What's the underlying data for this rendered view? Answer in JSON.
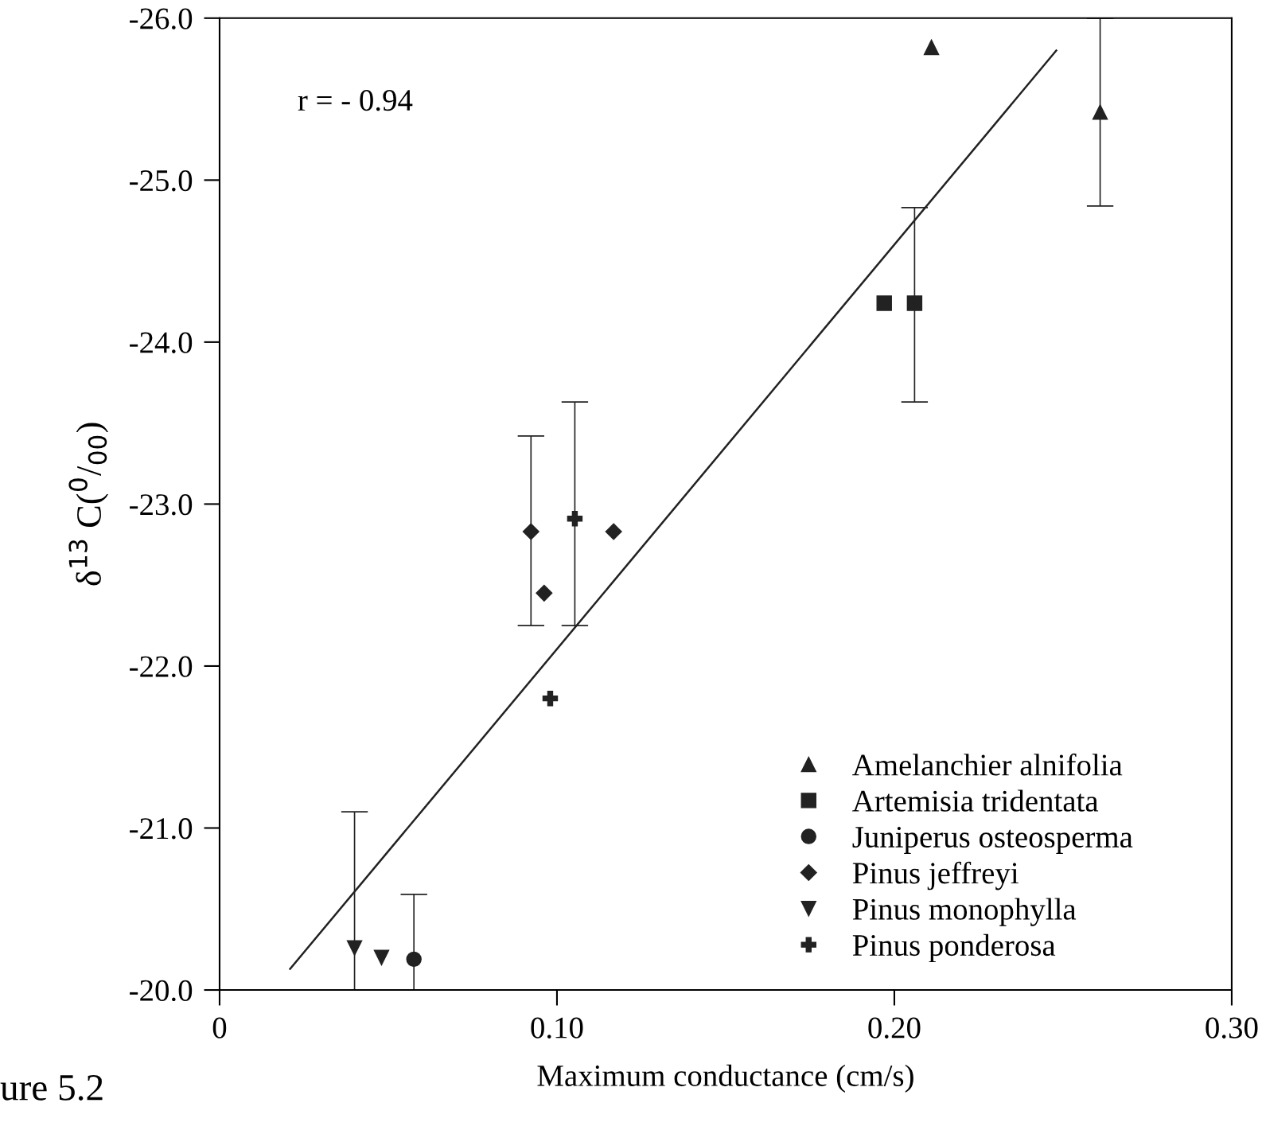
{
  "chart_data": {
    "type": "scatter",
    "xlabel": "Maximum conductance (cm/s)",
    "ylabel": "δ$^{13}$ C($^{0}$/$_{00}$)",
    "annotations": [
      "r = - 0.94",
      "ure 5.2"
    ],
    "xlim": [
      0,
      0.3
    ],
    "xticks": [
      0,
      {
        "value": 0.1,
        "label": "0.10"
      },
      {
        "value": 0.2,
        "label": "0.20"
      },
      {
        "value": 0.3,
        "label": "0.30"
      }
    ],
    "ylim": [
      -20,
      -26
    ],
    "yticks": [
      {
        "value": -20,
        "label": "-20.0"
      },
      {
        "value": -21,
        "label": "-21.0"
      },
      {
        "value": -22,
        "label": "-22.0"
      },
      {
        "value": -23,
        "label": "-23.0"
      },
      {
        "value": -24,
        "label": "-24.0"
      },
      {
        "value": -25,
        "label": "-25.0"
      },
      {
        "value": -26,
        "label": "-26.0"
      }
    ],
    "grid": false,
    "legend": "bottom right",
    "series": [
      {
        "name": "Amelanchier alnifolia",
        "color": "#222222",
        "marker": "triangle",
        "x": [
          0.211,
          0.261
        ],
        "values": [
          -25.82,
          -25.42
        ],
        "errors": [
          null,
          [
            -26.0,
            -24.84
          ]
        ]
      },
      {
        "name": "Artemisia tridentata",
        "color": "#222222",
        "marker": "square",
        "x": [
          0.197,
          0.206
        ],
        "values": [
          -24.24,
          -24.24
        ],
        "errors": [
          null,
          [
            -24.83,
            -23.63
          ]
        ]
      },
      {
        "name": "Juniperus osteosperma",
        "color": "#222222",
        "marker": "circle",
        "x": [
          0.0576
        ],
        "values": [
          -20.19
        ],
        "errors": [
          [
            -20.59,
            -20.0
          ]
        ]
      },
      {
        "name": "Pinus jeffreyi",
        "color": "#222222",
        "marker": "diamond",
        "x": [
          0.0923,
          0.0962,
          0.1168
        ],
        "values": [
          -22.83,
          -22.45,
          -22.83
        ],
        "errors": [
          [
            -23.42,
            -22.25
          ],
          null,
          null
        ]
      },
      {
        "name": "Pinus monophylla",
        "color": "#222222",
        "marker": "triangle_down",
        "x": [
          0.04,
          0.048
        ],
        "values": [
          -20.26,
          -20.2
        ],
        "errors": [
          [
            -21.1,
            -20.0
          ],
          null
        ]
      },
      {
        "name": "Pinus ponderosa",
        "color": "#222222",
        "marker": "cross",
        "x": [
          0.1053,
          0.098
        ],
        "values": [
          -22.91,
          -21.8
        ],
        "errors": [
          [
            -23.63,
            -22.25
          ],
          null
        ]
      },
      {
        "type": "line",
        "color": "#222222",
        "marker": "none",
        "line_style": "solid",
        "x": [
          0.0209,
          0.248
        ],
        "values": [
          -20.13,
          -25.8
        ]
      }
    ]
  }
}
